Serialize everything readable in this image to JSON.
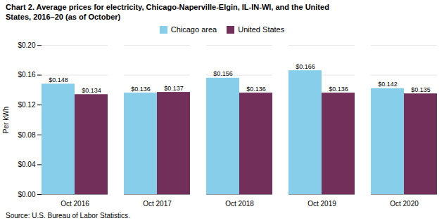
{
  "chart_data": {
    "type": "bar",
    "title": "Chart 2. Average prices for electricity, Chicago-Naperville-Elgin, IL-IN-WI, and the United",
    "subtitle": "States, 2016–20  (as of October)",
    "ylabel": "Per kWh",
    "source": "Source: U.S. Bureau of Labor Statistics.",
    "categories": [
      "Oct 2016",
      "Oct 2017",
      "Oct 2018",
      "Oct 2019",
      "Oct 2020"
    ],
    "series": [
      {
        "name": "Chicago area",
        "color": "#87CEEB",
        "values": [
          0.148,
          0.136,
          0.156,
          0.166,
          0.142
        ],
        "value_labels": [
          "$0.148",
          "$0.136",
          "$0.156",
          "$0.166",
          "$0.142"
        ]
      },
      {
        "name": "United States",
        "color": "#722F5A",
        "values": [
          0.134,
          0.137,
          0.136,
          0.136,
          0.135
        ],
        "value_labels": [
          "$0.134",
          "$0.137",
          "$0.136",
          "$0.136",
          "$0.135"
        ]
      }
    ],
    "ylim": [
      0,
      0.2
    ],
    "yticks": [
      {
        "value": 0.0,
        "label": "$0.00"
      },
      {
        "value": 0.04,
        "label": "$0.04"
      },
      {
        "value": 0.08,
        "label": "$0.08"
      },
      {
        "value": 0.12,
        "label": "$0.12"
      },
      {
        "value": 0.16,
        "label": "$0.16"
      },
      {
        "value": 0.2,
        "label": "$0.20"
      }
    ],
    "grid": true,
    "legend": "top",
    "data_labels": true
  }
}
